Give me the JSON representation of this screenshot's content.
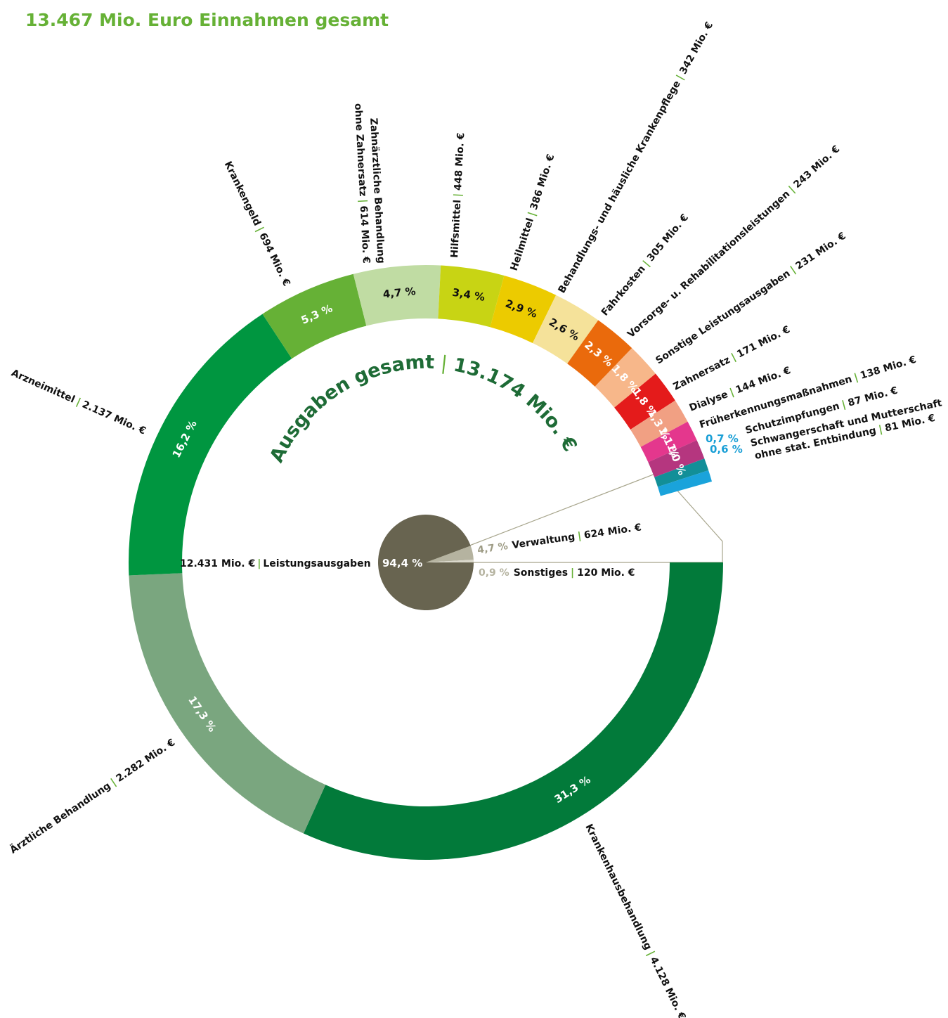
{
  "header": {
    "subtitle": "13.467 Mio. Euro Einnahmen gesamt"
  },
  "colors": {
    "accent": "#66b136",
    "center_title": "#1e6b36",
    "pie_main": "#686450",
    "pie_other": "#b5b3a0"
  },
  "chart_data": [
    {
      "type": "pie",
      "subtype": "donut",
      "title": "Ausgaben gesamt | 13.174 Mio. €",
      "title_left": "Ausgaben gesamt",
      "title_right": "13.174 Mio. €",
      "total": 12431,
      "unit": "Mio. €",
      "slices": [
        {
          "name": "Krankenhausbehandlung",
          "value": 4128,
          "value_label": "4.128 Mio. €",
          "pct": "31,3 %",
          "color": "#027a3a"
        },
        {
          "name": "Ärztliche Behandlung",
          "value": 2282,
          "value_label": "2.282 Mio. €",
          "pct": "17,3 %",
          "color": "#7aa67f"
        },
        {
          "name": "Arzneimittel",
          "value": 2137,
          "value_label": "2.137 Mio. €",
          "pct": "16,2 %",
          "color": "#009640"
        },
        {
          "name": "Krankengeld",
          "value": 694,
          "value_label": "694 Mio. €",
          "pct": "5,3 %",
          "color": "#66b136"
        },
        {
          "name": "Zahnärztliche Behandlung",
          "name2": "ohne Zahnersatz",
          "value": 614,
          "value_label": "614 Mio. €",
          "pct": "4,7 %",
          "color": "#c0dca3"
        },
        {
          "name": "Hilfsmittel",
          "value": 448,
          "value_label": "448 Mio. €",
          "pct": "3,4 %",
          "color": "#c8d414"
        },
        {
          "name": "Heilmittel",
          "value": 386,
          "value_label": "386 Mio. €",
          "pct": "2,9 %",
          "color": "#eccb00"
        },
        {
          "name": "Behandlungs- und häusliche Krankenpflege",
          "value": 342,
          "value_label": "342 Mio. €",
          "pct": "2,6 %",
          "color": "#f5e29a"
        },
        {
          "name": "Fahrkosten",
          "value": 305,
          "value_label": "305 Mio. €",
          "pct": "2,3 %",
          "color": "#ea6a0c"
        },
        {
          "name": "Vorsorge- u. Rehabilitationsleistungen",
          "value": 243,
          "value_label": "243 Mio. €",
          "pct": "1,8 %",
          "color": "#f7b78a"
        },
        {
          "name": "Sonstige Leistungsausgaben",
          "value": 231,
          "value_label": "231 Mio. €",
          "pct": "1,8 %",
          "color": "#e41b1b"
        },
        {
          "name": "Zahnersatz",
          "value": 171,
          "value_label": "171 Mio. €",
          "pct": "1,3 %",
          "color": "#f1a083"
        },
        {
          "name": "Dialyse",
          "value": 144,
          "value_label": "144 Mio. €",
          "pct": "1,1 %",
          "color": "#e4378d"
        },
        {
          "name": "Früherkennungsmaßnahmen",
          "value": 138,
          "value_label": "138 Mio. €",
          "pct": "1,0 %",
          "color": "#b5367f"
        },
        {
          "name": "Schutzimpfungen",
          "value": 87,
          "value_label": "87 Mio. €",
          "pct": "0,7 %",
          "color": "#128f98"
        },
        {
          "name": "Schwangerschaft und Mutterschaft",
          "name2": "ohne stat. Entbindung",
          "value": 81,
          "value_label": "81 Mio. €",
          "pct": "0,6 %",
          "color": "#1aa3db"
        }
      ]
    },
    {
      "type": "pie",
      "title": "",
      "slices": [
        {
          "name": "Leistungsausgaben",
          "value": 12431,
          "value_label": "12.431 Mio. €",
          "pct": "94,4 %",
          "color": "#686450"
        },
        {
          "name": "Verwaltung",
          "value": 624,
          "value_label": "624 Mio. €",
          "pct": "4,7 %",
          "color": "#b5b3a0"
        },
        {
          "name": "Sonstiges",
          "value": 120,
          "value_label": "120 Mio. €",
          "pct": "0,9 %",
          "color": "#dad8cb"
        }
      ]
    }
  ]
}
